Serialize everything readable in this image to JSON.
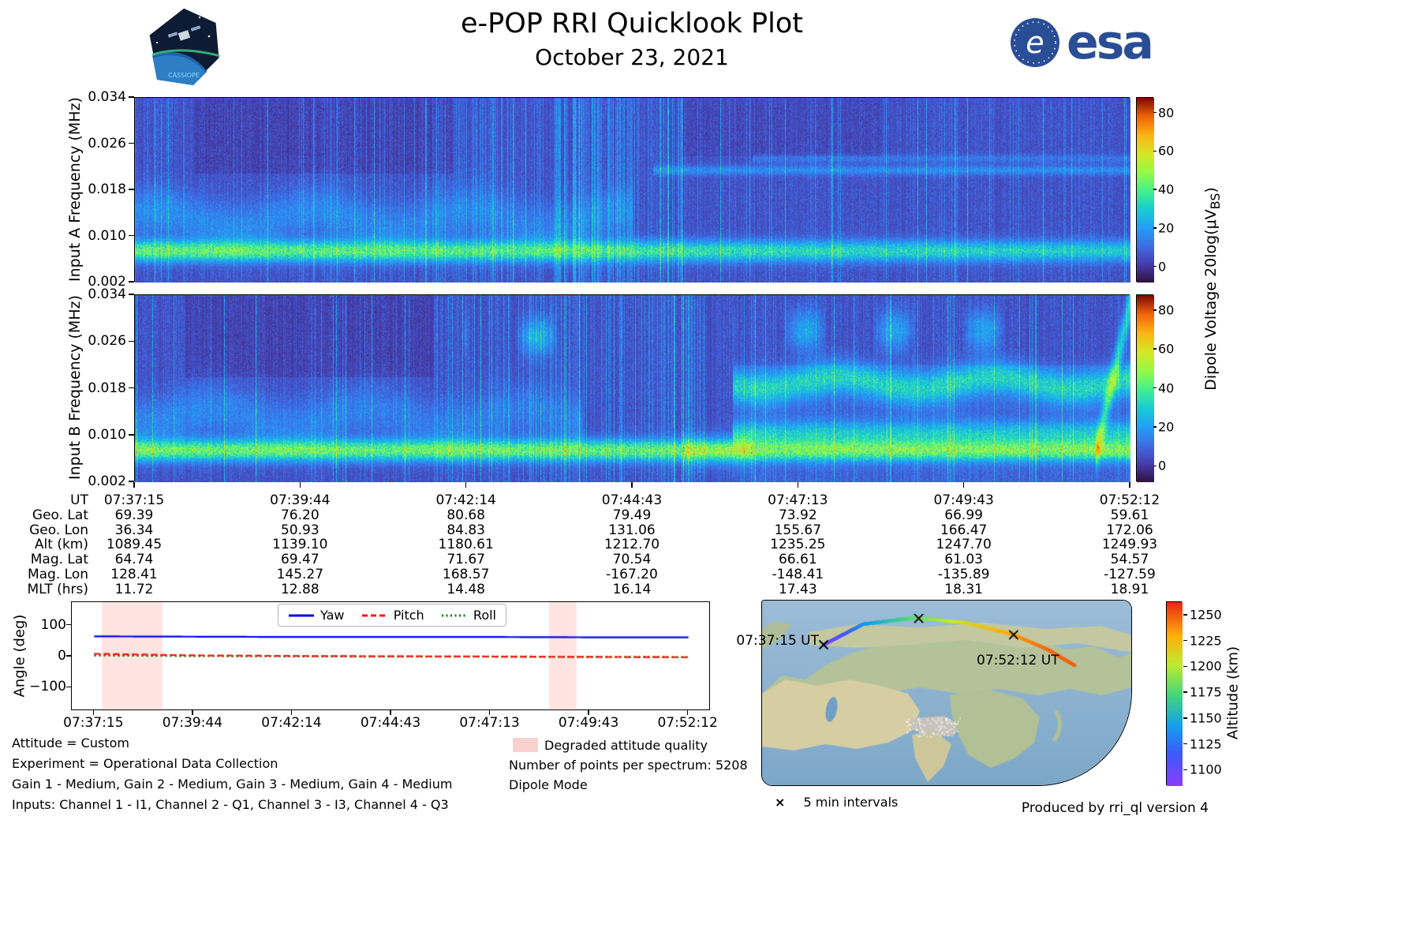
{
  "header": {
    "title": "e-POP RRI Quicklook Plot",
    "date": "October 23, 2021",
    "esa_text": "esa",
    "patch_text": "CASSIOPE"
  },
  "spectrograms": {
    "ytick_labels": [
      "0.034",
      "0.026",
      "0.018",
      "0.010",
      "0.002"
    ],
    "colorbar": {
      "ticks": [
        80,
        60,
        40,
        20,
        0
      ],
      "vmin": -8,
      "vmax": 88,
      "label_prefix": "Dipole Voltage 20log(μV",
      "label_sub": "BS",
      "label_suffix": ")"
    }
  },
  "ephemeris": {
    "rows": [
      {
        "label": "UT",
        "values": [
          "07:37:15",
          "07:39:44",
          "07:42:14",
          "07:44:43",
          "07:47:13",
          "07:49:43",
          "07:52:12"
        ]
      },
      {
        "label": "Geo. Lat",
        "values": [
          "69.39",
          "76.20",
          "80.68",
          "79.49",
          "73.92",
          "66.99",
          "59.61"
        ]
      },
      {
        "label": "Geo. Lon",
        "values": [
          "36.34",
          "50.93",
          "84.83",
          "131.06",
          "155.67",
          "166.47",
          "172.06"
        ]
      },
      {
        "label": "Alt (km)",
        "values": [
          "1089.45",
          "1139.10",
          "1180.61",
          "1212.70",
          "1235.25",
          "1247.70",
          "1249.93"
        ]
      },
      {
        "label": "Mag. Lat",
        "values": [
          "64.74",
          "69.47",
          "71.67",
          "70.54",
          "66.61",
          "61.03",
          "54.57"
        ]
      },
      {
        "label": "Mag. Lon",
        "values": [
          "128.41",
          "145.27",
          "168.57",
          "-167.20",
          "-148.41",
          "-135.89",
          "-127.59"
        ]
      },
      {
        "label": "MLT (hrs)",
        "values": [
          "11.72",
          "12.88",
          "14.48",
          "16.14",
          "17.43",
          "18.31",
          "18.91"
        ]
      }
    ]
  },
  "attitude": {
    "yticks": [
      {
        "label": "100",
        "value": 100
      },
      {
        "label": "0",
        "value": 0
      },
      {
        "label": "−100",
        "value": -100
      }
    ],
    "xtick_labels": [
      "07:37:15",
      "07:39:44",
      "07:42:14",
      "07:44:43",
      "07:47:13",
      "07:49:43",
      "07:52:12"
    ]
  },
  "footer": {
    "lines": [
      "Attitude = Custom",
      "Experiment = Operational Data Collection",
      "Gain 1 - Medium, Gain 2 - Medium, Gain 3 - Medium, Gain 4 - Medium",
      "Inputs: Channel 1 - I1, Channel 2 - Q1, Channel 3 - I3, Channel 4 - Q3"
    ],
    "degraded_label": "Degraded attitude quality",
    "points_label": "Number of points per spectrum: 5208",
    "mode_label": "Dipole Mode"
  },
  "map": {
    "start_label": "07:37:15 UT",
    "end_label": "07:52:12 UT",
    "intervals_marker": "×",
    "intervals_label": "5 min intervals",
    "produced_label": "Produced by rri_ql version 4",
    "colorbar_label": "Altitude (km)",
    "colorbar_ticks": [
      1250,
      1225,
      1200,
      1175,
      1150,
      1125,
      1100
    ],
    "colorbar_vmin": 1085,
    "colorbar_vmax": 1263
  },
  "chart_data": [
    {
      "type": "heatmap",
      "name": "input-a-spectrogram",
      "ylabel": "Input A Frequency (MHz)",
      "ylim": [
        0.002,
        0.034
      ],
      "yticks": [
        0.002,
        0.01,
        0.018,
        0.026,
        0.034
      ],
      "x_start_ut": "07:37:15",
      "x_end_ut": "07:52:12",
      "colorbar_label": "Dipole Voltage 20log(μVBS)",
      "colorbar_ticks": [
        0,
        20,
        40,
        60,
        80
      ],
      "description": "Bright emission band near 0.007 MHz across the whole pass, diffuse blue emission up to ~0.017 MHz in the first half, narrow horizontal lines near 0.021-0.024 MHz after 07:45, many broadband vertical streaks, dark purple background patches at high frequency",
      "render": {
        "seed": 7,
        "vmin": -8,
        "vmax": 88,
        "bands": [
          {
            "f0": 0.0075,
            "sigma": 0.0018,
            "amp": 42,
            "t0": 0,
            "t1": 1,
            "fade": 0.35
          },
          {
            "f0": 0.013,
            "sigma": 0.0042,
            "amp": 13,
            "t0": 0,
            "t1": 0.5,
            "wobble": 0.0015,
            "fade": 0.3
          },
          {
            "f0": 0.0215,
            "sigma": 0.0008,
            "amp": 13,
            "t0": 0.52,
            "t1": 1
          },
          {
            "f0": 0.0235,
            "sigma": 0.0007,
            "amp": 8,
            "t0": 0.62,
            "t1": 1
          }
        ],
        "streak_zones": [
          [
            0.18,
            0.55,
            0.22,
            22
          ],
          [
            0.42,
            0.5,
            0.3,
            26
          ]
        ],
        "blocks": [
          {
            "t0": 0.06,
            "t1": 0.32,
            "f0": 0.021,
            "f1": 0.034,
            "dv": -3
          },
          {
            "t0": 0.55,
            "t1": 0.75,
            "f0": 0.024,
            "f1": 0.034,
            "dv": -2
          }
        ]
      }
    },
    {
      "type": "heatmap",
      "name": "input-b-spectrogram",
      "ylabel": "Input B Frequency (MHz)",
      "ylim": [
        0.002,
        0.034
      ],
      "yticks": [
        0.002,
        0.01,
        0.018,
        0.026,
        0.034
      ],
      "x_start_ut": "07:37:15",
      "x_end_ut": "07:52:12",
      "colorbar_label": "Dipole Voltage 20log(μVBS)",
      "colorbar_ticks": [
        0,
        20,
        40,
        60,
        80
      ],
      "description": "Same low band near 0.007 MHz; after ~07:46 strong green bands near 0.019 and 0.0105 MHz plus patchy emission near 0.028 MHz; rising swirl at far right edge; clusters of vertical streaks mid-pass",
      "render": {
        "seed": 99,
        "vmin": -8,
        "vmax": 88,
        "bands": [
          {
            "f0": 0.0075,
            "sigma": 0.0018,
            "amp": 42,
            "t0": 0,
            "t1": 1
          },
          {
            "f0": 0.013,
            "sigma": 0.0045,
            "amp": 12,
            "t0": 0,
            "t1": 0.45,
            "wobble": 0.0015,
            "fade": 0.3
          },
          {
            "f0": 0.019,
            "sigma": 0.0028,
            "amp": 27,
            "t0": 0.6,
            "t1": 1,
            "wobble": 0.001
          },
          {
            "f0": 0.0105,
            "sigma": 0.002,
            "amp": 22,
            "t0": 0.6,
            "t1": 1
          },
          {
            "f0": 0.028,
            "sigma": 0.0035,
            "amp": 14,
            "t0": 0.6,
            "t1": 0.92,
            "patchy": true
          },
          {
            "f0": 0.027,
            "sigma": 0.003,
            "amp": 16,
            "t0": 0.33,
            "t1": 0.47,
            "patchy": true
          },
          {
            "f0": 0.0075,
            "sigma": 0.003,
            "amp": 10,
            "t0": 0.55,
            "t1": 0.62
          }
        ],
        "swirl": {
          "t0": 0.965,
          "f0": 0.007,
          "df": 0.026,
          "sigma": 0.0035,
          "amp": 28
        },
        "streak_zones": [
          [
            0.3,
            0.56,
            0.28,
            24
          ]
        ],
        "blocks": [
          {
            "t0": 0.05,
            "t1": 0.3,
            "f0": 0.02,
            "f1": 0.034,
            "dv": -3
          },
          {
            "t0": 0.6,
            "t1": 1,
            "f0": 0.002,
            "f1": 0.022,
            "dv": 3
          }
        ]
      }
    },
    {
      "type": "line",
      "name": "attitude-angles",
      "ylabel": "Angle (deg)",
      "ylim": [
        -175,
        175
      ],
      "yticks": [
        -100,
        0,
        100
      ],
      "x": [
        "07:37:15",
        "07:39:44",
        "07:42:14",
        "07:44:43",
        "07:47:13",
        "07:49:43",
        "07:52:12"
      ],
      "series": [
        {
          "name": "Yaw",
          "color": "#0000ee",
          "style": "solid",
          "values": [
            65,
            64,
            63,
            63,
            63,
            62,
            62
          ]
        },
        {
          "name": "Pitch",
          "color": "#ff1111",
          "style": "dashed",
          "values": [
            9,
            4,
            2,
            1,
            0,
            -1,
            -2
          ]
        },
        {
          "name": "Roll",
          "color": "#007f00",
          "style": "dotted",
          "values": [
            4,
            2,
            1,
            0,
            0,
            -1,
            -2
          ]
        }
      ],
      "degraded_regions_frac": [
        [
          0.047,
          0.142
        ],
        [
          0.747,
          0.79
        ]
      ],
      "legend_position": "top-center",
      "grid": false
    },
    {
      "type": "scatter",
      "name": "ground-track-map",
      "title": "Satellite ground track over northern Eurasia colored by altitude",
      "track": {
        "ut": [
          "07:37:15",
          "07:39:44",
          "07:42:14",
          "07:44:43",
          "07:47:13",
          "07:49:43",
          "07:52:12"
        ],
        "alt_km": [
          1089.45,
          1139.1,
          1180.61,
          1212.7,
          1235.25,
          1247.7,
          1249.93
        ],
        "geo_lat": [
          69.39,
          76.2,
          80.68,
          79.49,
          73.92,
          66.99,
          59.61
        ],
        "geo_lon": [
          36.34,
          50.93,
          84.83,
          131.06,
          155.67,
          166.47,
          172.06
        ]
      },
      "colorbar": {
        "label": "Altitude (km)",
        "ticks": [
          1100,
          1125,
          1150,
          1175,
          1200,
          1225,
          1250
        ],
        "vmin": 1085,
        "vmax": 1263
      },
      "marker_note": "5 min intervals"
    }
  ]
}
